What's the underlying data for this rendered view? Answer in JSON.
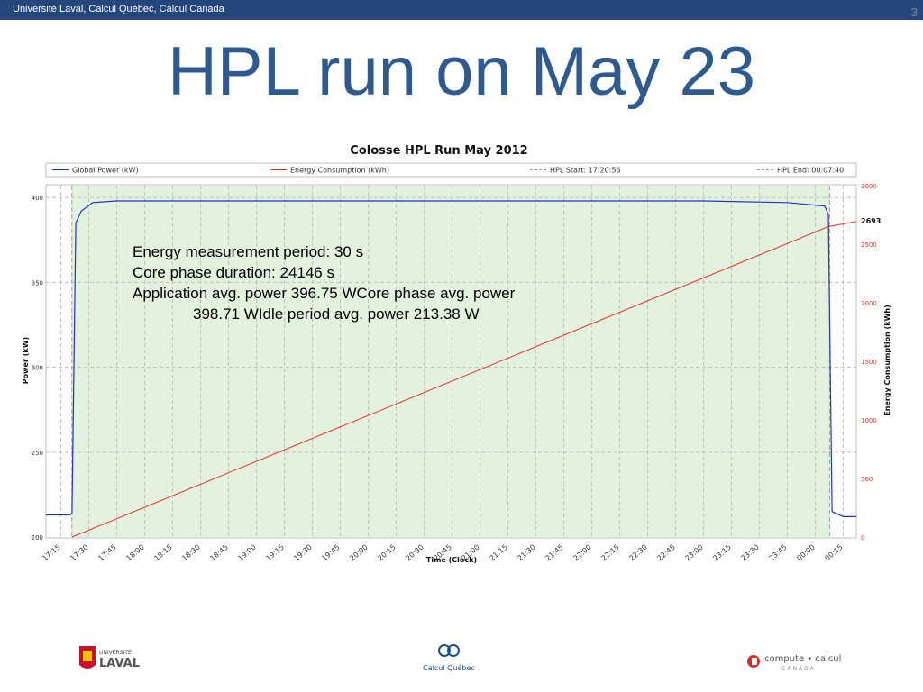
{
  "header": {
    "org_text": "Université Laval, Calcul Québec, Calcul Canada",
    "slide_number": "3"
  },
  "slide": {
    "title": "HPL run on May 23"
  },
  "annotation": {
    "line1": "Energy measurement period: 30 s",
    "line2": "Core phase duration: 24146 s",
    "line3": "Application avg. power 396.75 WCore phase avg. power",
    "line4": "398.71 WIdle period avg. power 213.38 W"
  },
  "chart_data": {
    "type": "line",
    "title": "Colosse HPL Run May 2012",
    "xlabel": "Time (Clock)",
    "ylabel": "Power (kW)",
    "y2label": "Energy Consumption (kWh)",
    "x_ticks": [
      "17:15",
      "17:30",
      "17:45",
      "18:00",
      "18:15",
      "18:30",
      "18:45",
      "19:00",
      "19:15",
      "19:30",
      "19:45",
      "20:00",
      "20:15",
      "20:30",
      "20:45",
      "21:00",
      "21:15",
      "21:30",
      "21:45",
      "22:00",
      "22:15",
      "22:30",
      "22:45",
      "23:00",
      "23:15",
      "23:30",
      "23:45",
      "00:00",
      "00:15"
    ],
    "y_ticks": [
      200,
      250,
      300,
      350,
      400
    ],
    "y2_ticks": [
      0,
      500,
      1000,
      1500,
      2000,
      2500,
      3000
    ],
    "ylim": [
      200,
      407
    ],
    "y2lim": [
      0,
      3000
    ],
    "legend": [
      "Global Power (kW)",
      "Energy Consumption (kWh)",
      "HPL Start: 17:20:56",
      "HPL End: 00:07:40"
    ],
    "legend_position": "top",
    "end_value_label": "2693",
    "hpl_start": "17:20:56",
    "hpl_end": "00:07:40",
    "series": [
      {
        "name": "Global Power (kW)",
        "axis": "left",
        "color": "#2233cc",
        "points": [
          [
            "17:07",
            213
          ],
          [
            "17:20",
            213
          ],
          [
            "17:21",
            214
          ],
          [
            "17:22",
            300
          ],
          [
            "17:23",
            385
          ],
          [
            "17:26",
            392
          ],
          [
            "17:32",
            397
          ],
          [
            "17:45",
            398
          ],
          [
            "18:00",
            398
          ],
          [
            "19:00",
            398
          ],
          [
            "20:00",
            398
          ],
          [
            "21:00",
            398
          ],
          [
            "22:00",
            398
          ],
          [
            "23:00",
            398
          ],
          [
            "23:45",
            397
          ],
          [
            "00:05",
            395
          ],
          [
            "00:07",
            390
          ],
          [
            "00:08",
            300
          ],
          [
            "00:09",
            215
          ],
          [
            "00:15",
            212
          ],
          [
            "00:22",
            212
          ]
        ]
      },
      {
        "name": "Energy Consumption (kWh)",
        "axis": "right",
        "color": "#e8322a",
        "points": [
          [
            "17:21",
            0
          ],
          [
            "00:07",
            2650
          ],
          [
            "00:22",
            2693
          ]
        ]
      }
    ],
    "grid": true,
    "shaded_region": [
      "17:20:56",
      "00:07:40"
    ],
    "colors": {
      "power": "#2233cc",
      "energy": "#e8322a",
      "shade": "#e3f1df",
      "grid": "#bfbfbf"
    }
  },
  "footer": {
    "logo1_small": "UNIVERSITÉ",
    "logo1_big": "LAVAL",
    "logo2_text": "Calcul Québec",
    "logo3_text": "compute • calcul",
    "logo3_sub": "CANADA"
  }
}
